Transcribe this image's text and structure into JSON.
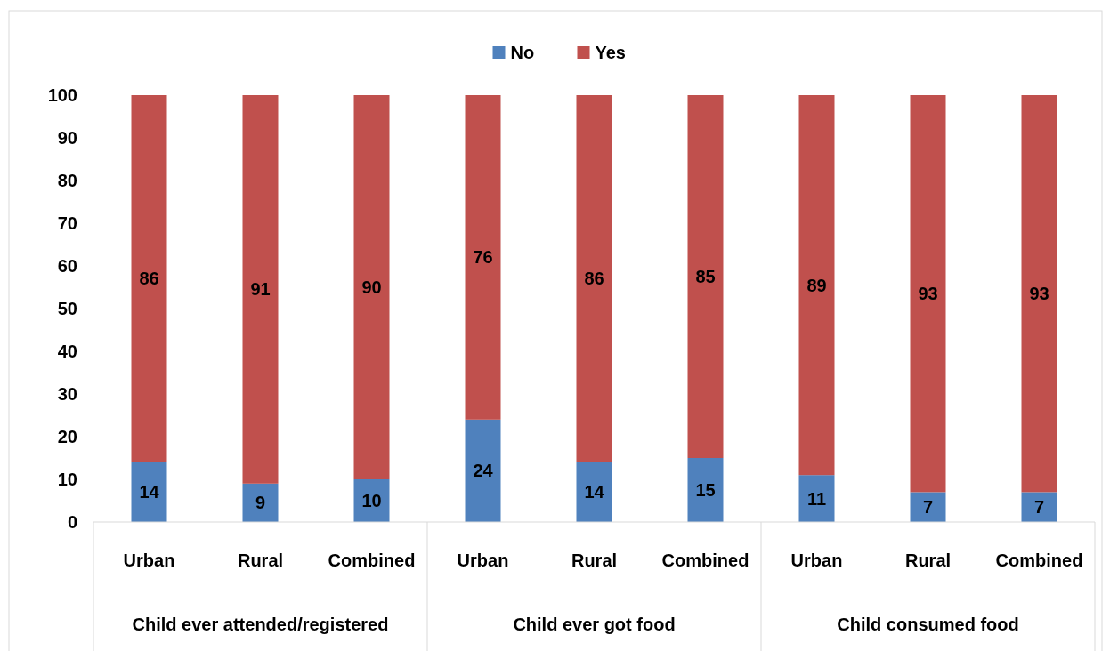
{
  "chart_data": {
    "type": "bar",
    "stacked": true,
    "categories": [
      "Urban",
      "Rural",
      "Combined",
      "Urban",
      "Rural",
      "Combined",
      "Urban",
      "Rural",
      "Combined"
    ],
    "series": [
      {
        "name": "No",
        "color": "#4f81bd",
        "values": [
          14,
          9,
          10,
          24,
          14,
          15,
          11,
          7,
          7
        ]
      },
      {
        "name": "Yes",
        "color": "#c0504d",
        "values": [
          86,
          91,
          90,
          76,
          86,
          85,
          89,
          93,
          93
        ]
      }
    ],
    "ylim": [
      0,
      100
    ],
    "yticks": [
      0,
      10,
      20,
      30,
      40,
      50,
      60,
      70,
      80,
      90,
      100
    ],
    "data_labels": true,
    "legend": "top",
    "grid": false,
    "annotations": [
      "Child ever attended/registered",
      "Child ever got food",
      "Child consumed food"
    ]
  }
}
